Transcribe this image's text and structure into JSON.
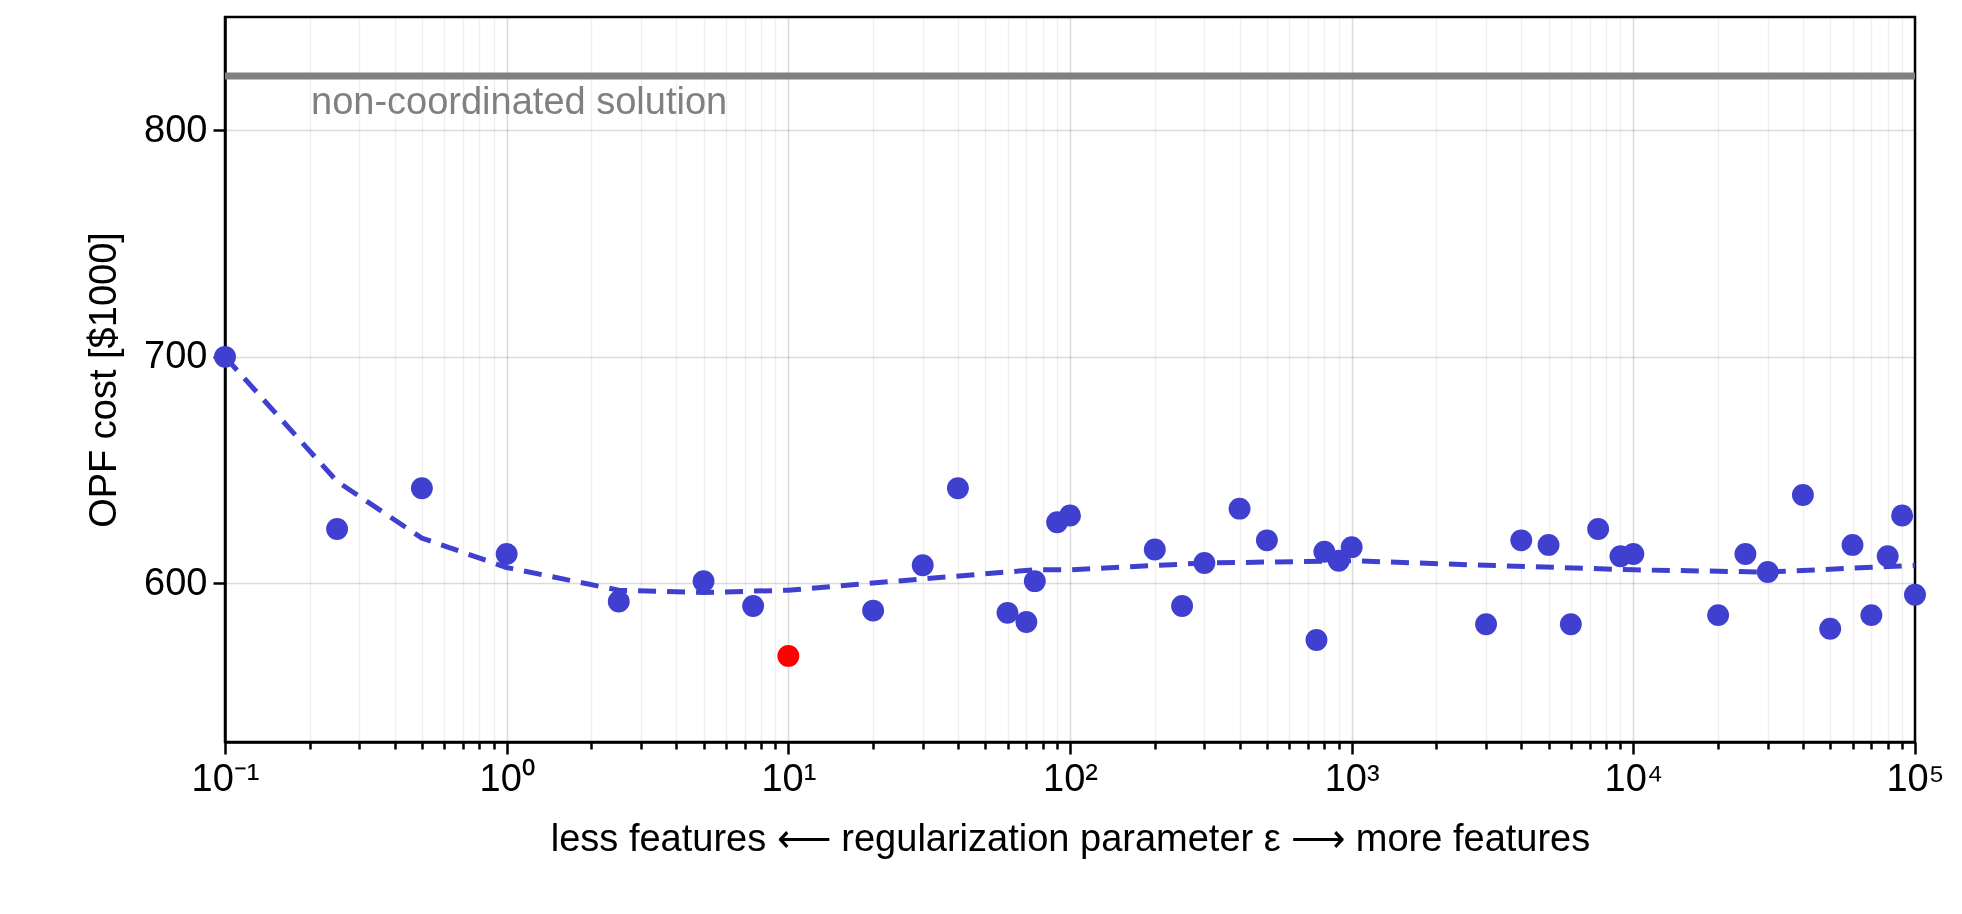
{
  "chart_data": {
    "type": "scatter",
    "xlabel": "less features  ⟵  regularization parameter ε  ⟶  more features",
    "ylabel": "OPF cost [$1000]",
    "log": "x",
    "grid": true,
    "marker": "circle",
    "legend": false,
    "xlim": [
      0.1,
      100000
    ],
    "ylim": [
      530,
      850
    ],
    "yticks": [
      600,
      700,
      800
    ],
    "xticks": [
      {
        "value": 0.1,
        "label": "10⁻¹"
      },
      {
        "value": 0.2,
        "label": null
      },
      {
        "value": 0.3,
        "label": null
      },
      {
        "value": 0.4,
        "label": null
      },
      {
        "value": 0.5,
        "label": null
      },
      {
        "value": 0.6,
        "label": null
      },
      {
        "value": 0.7,
        "label": null
      },
      {
        "value": 0.8,
        "label": null
      },
      {
        "value": 0.9,
        "label": null
      },
      {
        "value": 1,
        "label": "10⁰"
      },
      {
        "value": 2,
        "label": null
      },
      {
        "value": 3,
        "label": null
      },
      {
        "value": 4,
        "label": null
      },
      {
        "value": 5,
        "label": null
      },
      {
        "value": 6,
        "label": null
      },
      {
        "value": 7,
        "label": null
      },
      {
        "value": 8,
        "label": null
      },
      {
        "value": 9,
        "label": null
      },
      {
        "value": 10,
        "label": "10¹"
      },
      {
        "value": 20,
        "label": null
      },
      {
        "value": 30,
        "label": null
      },
      {
        "value": 40,
        "label": null
      },
      {
        "value": 50,
        "label": null
      },
      {
        "value": 60,
        "label": null
      },
      {
        "value": 70,
        "label": null
      },
      {
        "value": 80,
        "label": null
      },
      {
        "value": 90,
        "label": null
      },
      {
        "value": 100,
        "label": "10²"
      },
      {
        "value": 200,
        "label": null
      },
      {
        "value": 300,
        "label": null
      },
      {
        "value": 400,
        "label": null
      },
      {
        "value": 500,
        "label": null
      },
      {
        "value": 600,
        "label": null
      },
      {
        "value": 700,
        "label": null
      },
      {
        "value": 800,
        "label": null
      },
      {
        "value": 900,
        "label": null
      },
      {
        "value": 1000,
        "label": "10³"
      },
      {
        "value": 2000,
        "label": null
      },
      {
        "value": 3000,
        "label": null
      },
      {
        "value": 4000,
        "label": null
      },
      {
        "value": 5000,
        "label": null
      },
      {
        "value": 6000,
        "label": null
      },
      {
        "value": 7000,
        "label": null
      },
      {
        "value": 8000,
        "label": null
      },
      {
        "value": 9000,
        "label": null
      },
      {
        "value": 10000,
        "label": "10⁴"
      },
      {
        "value": 20000,
        "label": null
      },
      {
        "value": 30000,
        "label": null
      },
      {
        "value": 40000,
        "label": null
      },
      {
        "value": 50000,
        "label": null
      },
      {
        "value": 60000,
        "label": null
      },
      {
        "value": 70000,
        "label": null
      },
      {
        "value": 80000,
        "label": null
      },
      {
        "value": 90000,
        "label": null
      },
      {
        "value": 100000,
        "label": "10⁵"
      }
    ],
    "ref_lines": [
      {
        "axis": "y",
        "value": 824,
        "label": "non-coordinated solution",
        "color": "#808080"
      }
    ],
    "series": [
      {
        "type": "line",
        "color": "#4040d0",
        "line_style": "dashed",
        "marker": "none",
        "x": [
          0.1,
          0.25,
          0.5,
          1,
          2.5,
          5,
          10,
          30,
          75,
          100,
          300,
          1000,
          3000,
          10000,
          30000,
          100000
        ],
        "values": [
          700,
          645,
          620,
          607,
          597,
          596,
          597,
          602,
          606,
          606,
          609,
          610,
          608,
          606,
          605,
          608
        ]
      },
      {
        "color": "#4040d0",
        "x": [
          0.1,
          0.25,
          0.5,
          1,
          2.5,
          5,
          7.5,
          20,
          30,
          40,
          60,
          70,
          75,
          90,
          100,
          200,
          250,
          300,
          400,
          500,
          750,
          800,
          900,
          1000,
          3000,
          4000,
          5000,
          6000,
          7500,
          9000,
          10000,
          20000,
          25000,
          30000,
          40000,
          50000,
          60000,
          70000,
          80000,
          90000,
          100000
        ],
        "values": [
          700,
          624,
          642,
          613,
          592,
          601,
          590,
          588,
          608,
          642,
          587,
          583,
          601,
          627,
          630,
          615,
          590,
          609,
          633,
          619,
          575,
          614,
          610,
          616,
          582,
          619,
          617,
          582,
          624,
          612,
          613,
          586,
          613,
          605,
          639,
          580,
          617,
          586,
          612,
          630,
          595
        ]
      },
      {
        "color": "#ff0000",
        "x": [
          10
        ],
        "values": [
          568
        ]
      }
    ]
  }
}
